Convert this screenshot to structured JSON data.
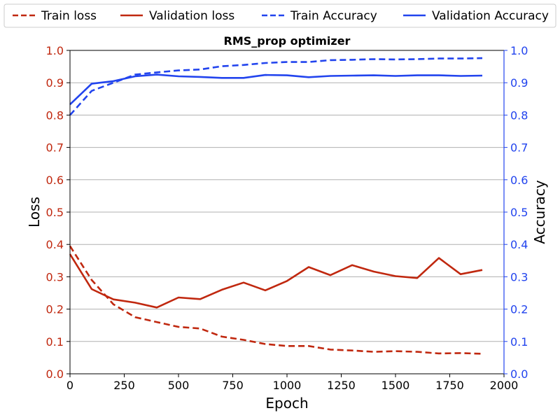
{
  "chart_data": {
    "type": "line",
    "title": "RMS_prop optimizer",
    "xlabel": "Epoch",
    "ylabel_left": "Loss",
    "ylabel_right": "Accuracy",
    "xlim": [
      0,
      2000
    ],
    "ylim_left": [
      0,
      1.0
    ],
    "ylim_right": [
      0,
      1.0
    ],
    "x_ticks": [
      0,
      250,
      500,
      750,
      1000,
      1250,
      1500,
      1750,
      2000
    ],
    "y_ticks_left": [
      "0.0",
      "0.1",
      "0.2",
      "0.3",
      "0.4",
      "0.5",
      "0.6",
      "0.7",
      "0.8",
      "0.9",
      "1.0"
    ],
    "y_ticks_right": [
      "0.0",
      "0.1",
      "0.2",
      "0.3",
      "0.4",
      "0.5",
      "0.6",
      "0.7",
      "0.8",
      "0.9",
      "1.0"
    ],
    "grid": "horizontal",
    "legend_position": "top",
    "colors": {
      "loss": "#c0280f",
      "accuracy": "#2244ee",
      "grid": "#b0b0b0"
    },
    "x": [
      0,
      100,
      200,
      300,
      400,
      500,
      600,
      700,
      800,
      900,
      1000,
      1100,
      1200,
      1300,
      1400,
      1500,
      1600,
      1700,
      1800,
      1900
    ],
    "series": [
      {
        "name": "Train loss",
        "axis": "left",
        "style": "dashed",
        "color": "#c0280f",
        "values": [
          0.395,
          0.29,
          0.215,
          0.175,
          0.16,
          0.145,
          0.14,
          0.115,
          0.105,
          0.092,
          0.086,
          0.086,
          0.075,
          0.072,
          0.068,
          0.07,
          0.068,
          0.063,
          0.064,
          0.062
        ]
      },
      {
        "name": "Validation loss",
        "axis": "left",
        "style": "solid",
        "color": "#c0280f",
        "values": [
          0.37,
          0.262,
          0.23,
          0.22,
          0.205,
          0.236,
          0.231,
          0.26,
          0.282,
          0.258,
          0.287,
          0.33,
          0.305,
          0.336,
          0.316,
          0.302,
          0.296,
          0.358,
          0.308,
          0.321
        ]
      },
      {
        "name": "Train Accuracy",
        "axis": "right",
        "style": "dashed",
        "color": "#2244ee",
        "values": [
          0.8,
          0.875,
          0.9,
          0.925,
          0.932,
          0.938,
          0.941,
          0.951,
          0.955,
          0.961,
          0.964,
          0.964,
          0.97,
          0.971,
          0.973,
          0.972,
          0.973,
          0.975,
          0.975,
          0.976
        ]
      },
      {
        "name": "Validation Accuracy",
        "axis": "right",
        "style": "solid",
        "color": "#2244ee",
        "values": [
          0.833,
          0.897,
          0.905,
          0.92,
          0.925,
          0.92,
          0.918,
          0.915,
          0.915,
          0.924,
          0.923,
          0.917,
          0.921,
          0.922,
          0.923,
          0.921,
          0.923,
          0.923,
          0.921,
          0.922
        ]
      }
    ]
  }
}
